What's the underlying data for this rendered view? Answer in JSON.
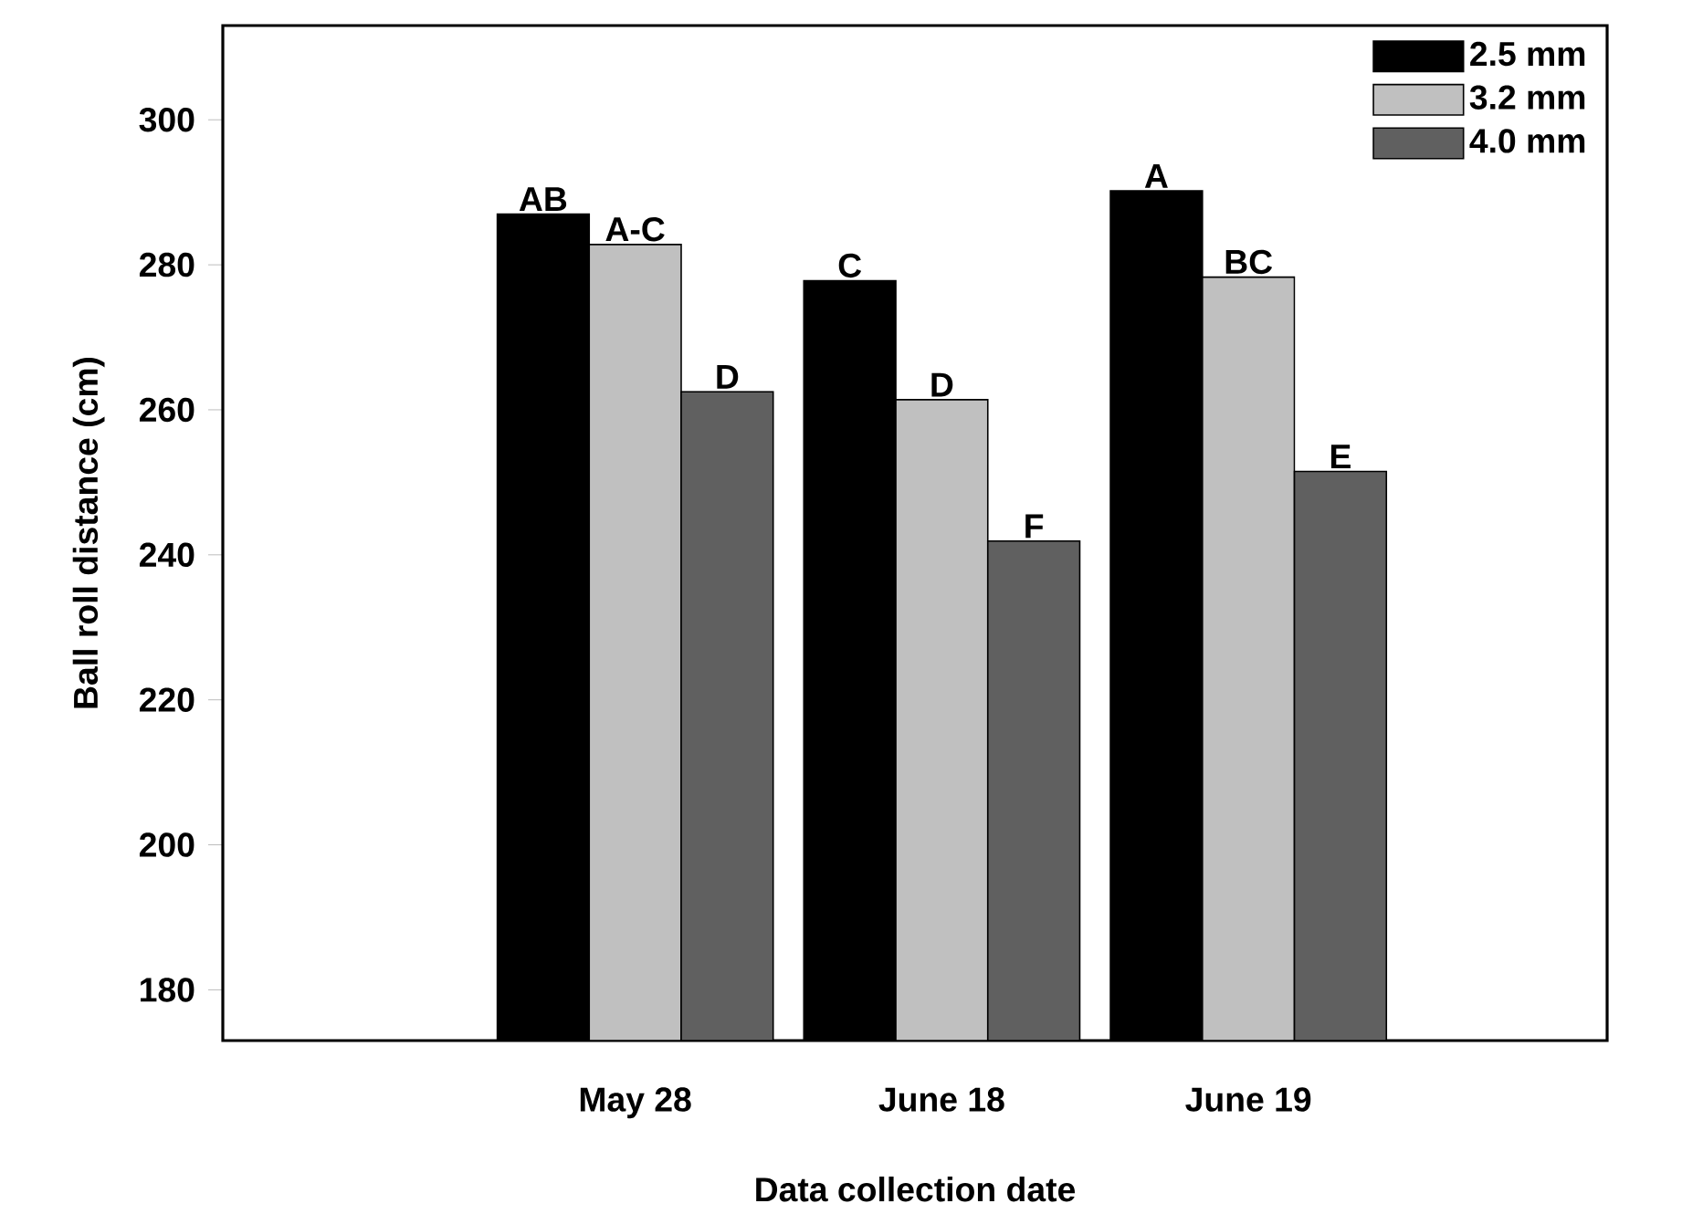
{
  "chart_data": {
    "type": "bar",
    "xlabel": "Data collection date",
    "ylabel": "Ball roll distance (cm)",
    "categories": [
      "May 28",
      "June 18",
      "June 19"
    ],
    "series": [
      {
        "name": "2.5 mm",
        "color": "#000000",
        "values": [
          287,
          277.8,
          290.2
        ],
        "value_labels": [
          "AB",
          "C",
          "A"
        ]
      },
      {
        "name": "3.2 mm",
        "color": "#c0c0c0",
        "values": [
          282.8,
          261.4,
          278.3
        ],
        "value_labels": [
          "A-C",
          "D",
          "BC"
        ]
      },
      {
        "name": "4.0 mm",
        "color": "#606060",
        "values": [
          262.5,
          241.9,
          251.5
        ],
        "value_labels": [
          "D",
          "F",
          "E"
        ]
      }
    ],
    "ylim": [
      173,
      313
    ],
    "yticks": [
      180,
      200,
      220,
      240,
      260,
      280,
      300
    ],
    "grid": false,
    "legend": "top right"
  }
}
